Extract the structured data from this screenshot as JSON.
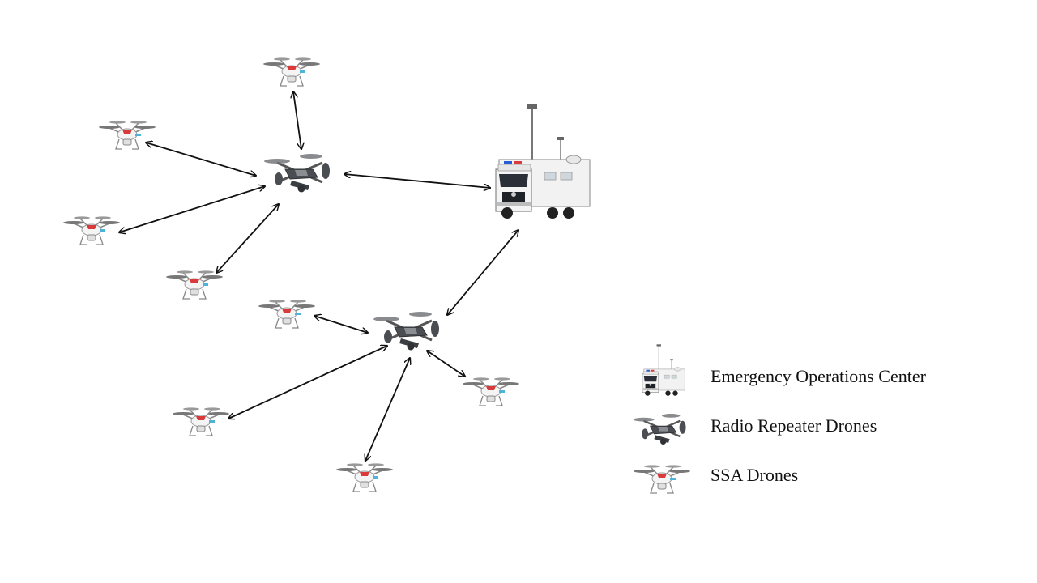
{
  "legend": {
    "eoc_label": "Emergency Operations Center",
    "repeater_label": "Radio Repeater Drones",
    "ssa_label": "SSA Drones"
  },
  "icons": {
    "eoc": "command-truck-icon",
    "repeater": "repeater-drone-icon",
    "ssa": "ssa-drone-icon"
  },
  "colors": {
    "arrow": "#111111",
    "ssa_body": "#f4f4f4",
    "ssa_accent": "#d93a3a",
    "ssa_blue": "#4fb3d9",
    "repeater_body": "#4a4d52",
    "truck_body": "#f2f2f2"
  }
}
